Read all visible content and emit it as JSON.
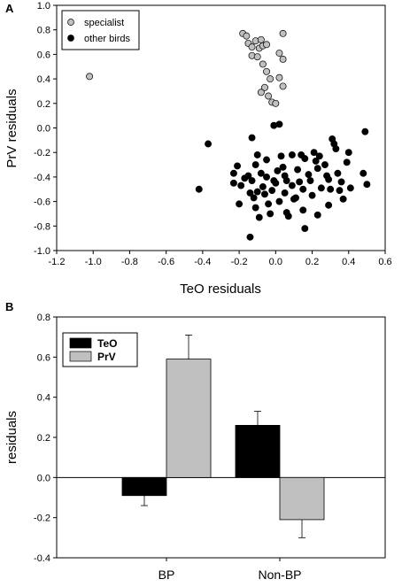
{
  "chart_data": [
    {
      "panel": "A",
      "type": "scatter",
      "xlabel": "TeO residuals",
      "ylabel": "PrV residuals",
      "xlim": [
        -1.2,
        0.6
      ],
      "ylim": [
        -1.0,
        1.0
      ],
      "xticks": [
        "-1.2",
        "-1.0",
        "-0.8",
        "-0.6",
        "-0.4",
        "-0.2",
        "0.0",
        "0.2",
        "0.4",
        "0.6"
      ],
      "yticks": [
        "-1.0",
        "-0.8",
        "-0.6",
        "-0.4",
        "-0.2",
        "0.0",
        "0.2",
        "0.4",
        "0.6",
        "0.8",
        "1.0"
      ],
      "legend_position": "top-left",
      "series": [
        {
          "name": "specialist",
          "color": "#c0c0c0",
          "points": [
            [
              -1.02,
              0.42
            ],
            [
              -0.18,
              0.77
            ],
            [
              -0.16,
              0.75
            ],
            [
              -0.15,
              0.69
            ],
            [
              -0.13,
              0.66
            ],
            [
              -0.11,
              0.71
            ],
            [
              -0.09,
              0.65
            ],
            [
              -0.07,
              0.67
            ],
            [
              -0.08,
              0.72
            ],
            [
              -0.05,
              0.68
            ],
            [
              -0.13,
              0.59
            ],
            [
              -0.1,
              0.58
            ],
            [
              -0.07,
              0.52
            ],
            [
              -0.05,
              0.46
            ],
            [
              -0.03,
              0.4
            ],
            [
              -0.06,
              0.33
            ],
            [
              -0.08,
              0.29
            ],
            [
              -0.04,
              0.26
            ],
            [
              -0.02,
              0.21
            ],
            [
              0.0,
              0.2
            ],
            [
              0.04,
              0.77
            ],
            [
              0.02,
              0.61
            ],
            [
              0.04,
              0.56
            ],
            [
              0.02,
              0.41
            ],
            [
              0.04,
              0.34
            ]
          ]
        },
        {
          "name": "other birds",
          "color": "#000000",
          "points": [
            [
              -0.42,
              -0.5
            ],
            [
              -0.37,
              -0.13
            ],
            [
              -0.23,
              -0.37
            ],
            [
              -0.21,
              -0.31
            ],
            [
              -0.23,
              -0.45
            ],
            [
              -0.19,
              -0.47
            ],
            [
              -0.2,
              -0.62
            ],
            [
              -0.17,
              -0.41
            ],
            [
              -0.15,
              -0.39
            ],
            [
              -0.13,
              -0.43
            ],
            [
              -0.14,
              -0.53
            ],
            [
              -0.12,
              -0.57
            ],
            [
              -0.11,
              -0.65
            ],
            [
              -0.1,
              -0.52
            ],
            [
              -0.11,
              -0.3
            ],
            [
              -0.1,
              -0.22
            ],
            [
              -0.08,
              -0.37
            ],
            [
              -0.07,
              -0.48
            ],
            [
              -0.09,
              -0.73
            ],
            [
              -0.06,
              -0.54
            ],
            [
              -0.05,
              -0.4
            ],
            [
              -0.04,
              -0.62
            ],
            [
              -0.03,
              -0.7
            ],
            [
              -0.02,
              -0.51
            ],
            [
              -0.01,
              -0.43
            ],
            [
              0.0,
              -0.45
            ],
            [
              0.01,
              -0.35
            ],
            [
              0.02,
              -0.6
            ],
            [
              -0.01,
              0.02
            ],
            [
              0.02,
              0.03
            ],
            [
              0.03,
              -0.23
            ],
            [
              0.04,
              -0.32
            ],
            [
              0.05,
              -0.39
            ],
            [
              0.06,
              -0.43
            ],
            [
              0.05,
              -0.53
            ],
            [
              0.06,
              -0.69
            ],
            [
              0.07,
              -0.72
            ],
            [
              0.09,
              -0.47
            ],
            [
              0.1,
              -0.58
            ],
            [
              0.12,
              -0.34
            ],
            [
              0.13,
              -0.44
            ],
            [
              0.15,
              -0.5
            ],
            [
              0.14,
              -0.22
            ],
            [
              0.15,
              -0.67
            ],
            [
              0.16,
              -0.82
            ],
            [
              0.16,
              -0.25
            ],
            [
              0.18,
              -0.38
            ],
            [
              0.19,
              -0.43
            ],
            [
              0.2,
              -0.55
            ],
            [
              0.21,
              -0.2
            ],
            [
              0.22,
              -0.27
            ],
            [
              0.23,
              -0.33
            ],
            [
              0.24,
              -0.23
            ],
            [
              0.25,
              -0.49
            ],
            [
              0.27,
              -0.3
            ],
            [
              0.28,
              -0.39
            ],
            [
              0.29,
              -0.63
            ],
            [
              0.3,
              -0.5
            ],
            [
              0.31,
              -0.09
            ],
            [
              0.32,
              -0.13
            ],
            [
              0.33,
              -0.17
            ],
            [
              0.34,
              -0.37
            ],
            [
              0.35,
              -0.51
            ],
            [
              0.36,
              -0.44
            ],
            [
              0.37,
              -0.58
            ],
            [
              0.39,
              -0.28
            ],
            [
              0.4,
              -0.2
            ],
            [
              0.41,
              -0.49
            ],
            [
              0.48,
              -0.37
            ],
            [
              0.49,
              -0.03
            ],
            [
              0.5,
              -0.46
            ],
            [
              -0.14,
              -0.89
            ],
            [
              0.23,
              -0.71
            ],
            [
              -0.13,
              -0.08
            ],
            [
              0.29,
              -0.42
            ],
            [
              0.09,
              -0.22
            ],
            [
              0.11,
              -0.57
            ],
            [
              -0.05,
              -0.26
            ]
          ]
        }
      ]
    },
    {
      "panel": "B",
      "type": "bar",
      "ylabel": "residuals",
      "xlabel": "",
      "categories": [
        "BP",
        "Non-BP"
      ],
      "ylim": [
        -0.4,
        0.8
      ],
      "yticks": [
        "-0.4",
        "-0.2",
        "0.0",
        "0.2",
        "0.4",
        "0.6",
        "0.8"
      ],
      "legend_position": "top-left",
      "series": [
        {
          "name": "TeO",
          "color": "#000000",
          "values": [
            -0.09,
            0.26
          ],
          "errors": [
            0.05,
            0.07
          ]
        },
        {
          "name": "PrV",
          "color": "#c0c0c0",
          "values": [
            0.59,
            -0.21
          ],
          "errors": [
            0.12,
            0.09
          ]
        }
      ]
    }
  ]
}
